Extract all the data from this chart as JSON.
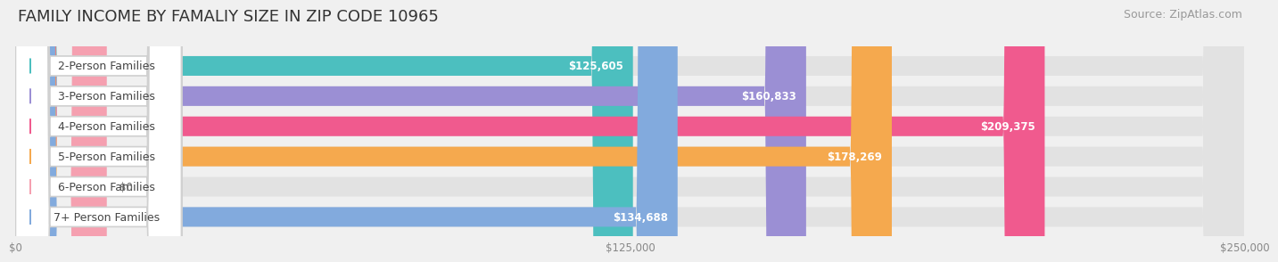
{
  "title": "FAMILY INCOME BY FAMALIY SIZE IN ZIP CODE 10965",
  "source": "Source: ZipAtlas.com",
  "categories": [
    "2-Person Families",
    "3-Person Families",
    "4-Person Families",
    "5-Person Families",
    "6-Person Families",
    "7+ Person Families"
  ],
  "values": [
    125605,
    160833,
    209375,
    178269,
    0,
    134688
  ],
  "bar_colors": [
    "#4CBFBF",
    "#9B8FD4",
    "#F05A8E",
    "#F5A94E",
    "#F5A0B0",
    "#82AADD"
  ],
  "value_labels": [
    "$125,605",
    "$160,833",
    "$209,375",
    "$178,269",
    "$0",
    "$134,688"
  ],
  "xlim": [
    0,
    250000
  ],
  "xticks": [
    0,
    125000,
    250000
  ],
  "xtick_labels": [
    "$0",
    "$125,000",
    "$250,000"
  ],
  "background_color": "#f0f0f0",
  "bar_bg_color": "#e2e2e2",
  "title_fontsize": 13,
  "source_fontsize": 9,
  "label_fontsize": 9,
  "value_fontsize": 8.5
}
